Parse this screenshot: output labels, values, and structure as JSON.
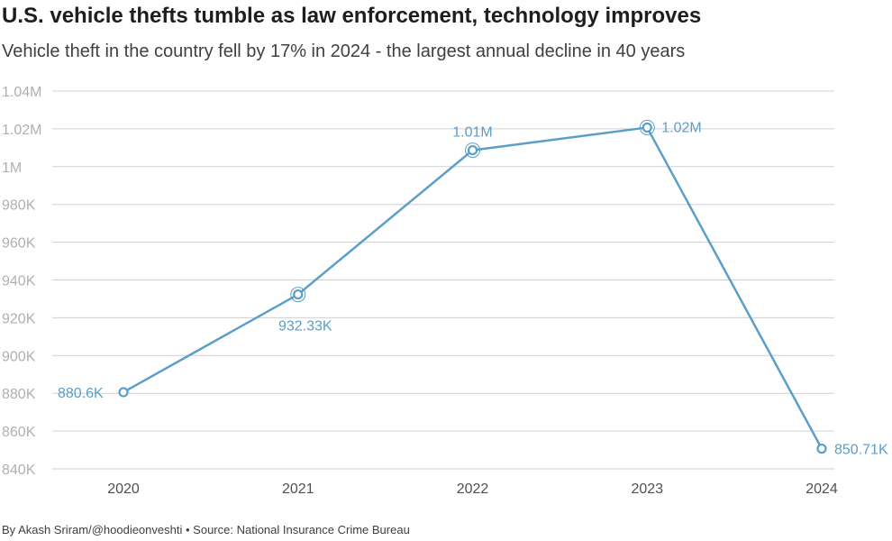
{
  "header": {
    "title": "U.S. vehicle thefts tumble as law enforcement, technology improves",
    "subtitle": "Vehicle theft in the country fell by 17% in 2024 - the largest annual decline in 40 years"
  },
  "footer": {
    "byline": "By Akash Sriram/@hoodieonveshti",
    "separator": "•",
    "source": "Source: National Insurance Crime Bureau"
  },
  "colors": {
    "line": "#5b9ec9",
    "grid": "#d0d0d0",
    "label": "#5b9ec9"
  },
  "chart_data": {
    "type": "line",
    "title": "U.S. vehicle thefts tumble as law enforcement, technology improves",
    "xlabel": "",
    "ylabel": "",
    "categories": [
      "2020",
      "2021",
      "2022",
      "2023",
      "2024"
    ],
    "series": [
      {
        "name": "Vehicle thefts",
        "values": [
          880600,
          932330,
          1008700,
          1020700,
          850710
        ],
        "labels": [
          "880.6K",
          "932.33K",
          "1.01M",
          "1.02M",
          "850.71K"
        ],
        "highlighted": [
          false,
          true,
          true,
          true,
          false
        ]
      }
    ],
    "ylim": [
      840000,
      1040000
    ],
    "yticks": [
      840000,
      860000,
      880000,
      900000,
      920000,
      940000,
      960000,
      980000,
      1000000,
      1020000,
      1040000
    ],
    "ytick_labels": [
      "840K",
      "860K",
      "880K",
      "900K",
      "920K",
      "940K",
      "960K",
      "980K",
      "1M",
      "1.02M",
      "1.04M"
    ],
    "grid": true,
    "legend": "none"
  }
}
